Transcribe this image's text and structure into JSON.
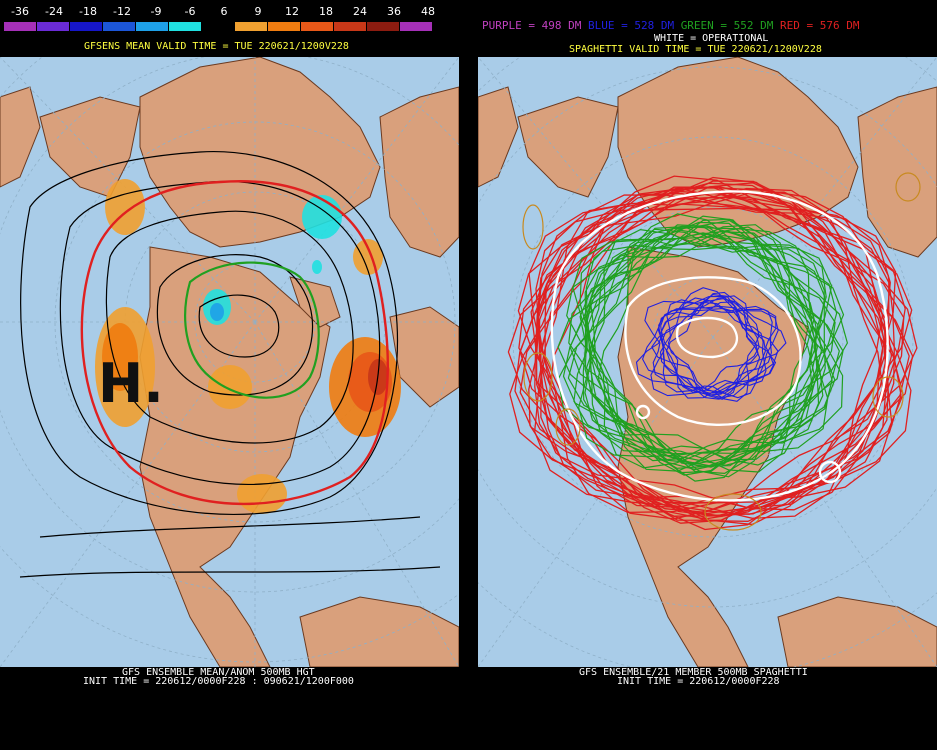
{
  "left_panel": {
    "scale": {
      "labels": [
        "-36",
        "-24",
        "-18",
        "-12",
        "-9",
        "-6",
        "6",
        "9",
        "12",
        "18",
        "24",
        "36",
        "48"
      ],
      "colors": [
        "#a530b8",
        "#6a2bd6",
        "#1616c8",
        "#1c56d8",
        "#1ea0e8",
        "#20e0e0",
        "#000000",
        "#f0a030",
        "#f07c10",
        "#e85818",
        "#c83818",
        "#8c1c10",
        "#a530b8"
      ]
    },
    "title": "GFSENS MEAN VALID TIME = TUE 220621/1200V228",
    "footer_line1": "GFS ENSEMBLE MEAN/ANOM 500MB HGT",
    "footer_line2": "INIT TIME = 220612/0000F228 : 090621/1200F000",
    "annotation": "H."
  },
  "right_panel": {
    "legend": [
      {
        "text": "PURPLE = 498 DM",
        "color": "#c040c0"
      },
      {
        "text": "BLUE = 528 DM",
        "color": "#2020e0"
      },
      {
        "text": "GREEN = 552 DM",
        "color": "#20a020"
      },
      {
        "text": "RED = 576 DM",
        "color": "#e02020"
      }
    ],
    "subtitle": "WHITE = OPERATIONAL",
    "title": "SPAGHETTI VALID TIME = TUE 220621/1200V228",
    "footer_line1": "GFS ENSEMBLE/21 MEMBER 500MB SPAGHETTI",
    "footer_line2": "INIT TIME = 220612/0000F228"
  },
  "colors": {
    "ocean": "#a9cce8",
    "land": "#d9a07c",
    "header_text": "#ffff40",
    "footer_text": "#ffffff"
  }
}
